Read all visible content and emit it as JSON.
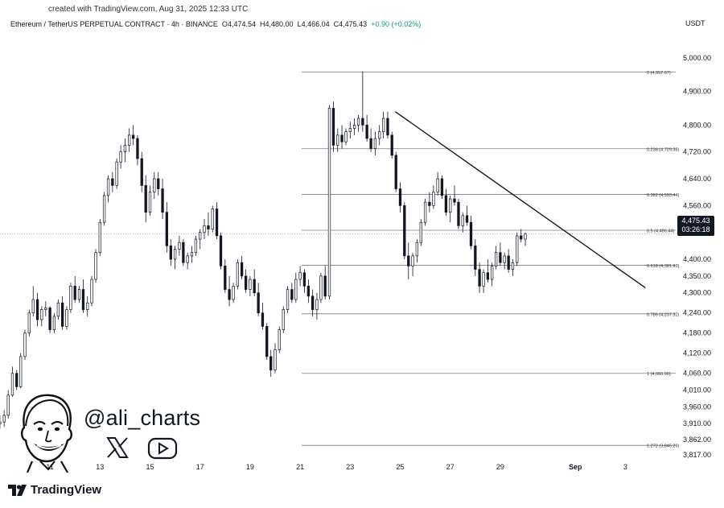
{
  "credit": "created with TradingView.com, Aug 31, 2025 12:33 UTC",
  "header": {
    "symbol": "Ethereum / TetherUS PERPETUAL CONTRACT · 4h · BINANCE",
    "open_label": "O",
    "open": "4,474.54",
    "high_label": "H",
    "high": "4,480.00",
    "low_label": "L",
    "low": "4,466.04",
    "close_label": "C",
    "close": "4,475.43",
    "change": "+0.90 (+0.02%)"
  },
  "currency": "USDT",
  "watermark": "@ali_charts",
  "brand": "TradingView",
  "price_tag": {
    "price": "4,475.43",
    "countdown": "03:26:18"
  },
  "icons": [
    "avatar-caricature",
    "x-logo-icon",
    "youtube-icon",
    "tradingview-logo-icon"
  ],
  "colors": {
    "up": "#131722",
    "down": "#131722",
    "text": "#131722",
    "grid_line": "#7a7a7a",
    "current_price_line": "#b0b0b0"
  },
  "chart_data": {
    "type": "candlestick",
    "y_range": [
      3790,
      5040
    ],
    "x_range_days": [
      "Aug 9",
      "Sep 4"
    ],
    "y_ticks": [
      {
        "value": 5000,
        "label": "5,000.00"
      },
      {
        "value": 4900,
        "label": "4,900.00"
      },
      {
        "value": 4800,
        "label": "4,800.00"
      },
      {
        "value": 4720,
        "label": "4,720.00"
      },
      {
        "value": 4640,
        "label": "4,640.00"
      },
      {
        "value": 4560,
        "label": "4,560.00"
      },
      {
        "value": 4400,
        "label": "4,400.00"
      },
      {
        "value": 4350,
        "label": "4,350.00"
      },
      {
        "value": 4300,
        "label": "4,300.00"
      },
      {
        "value": 4240,
        "label": "4,240.00"
      },
      {
        "value": 4180,
        "label": "4,180.00"
      },
      {
        "value": 4120,
        "label": "4,120.00"
      },
      {
        "value": 4060,
        "label": "4,060.00"
      },
      {
        "value": 4010,
        "label": "4,010.00"
      },
      {
        "value": 3960,
        "label": "3,960.00"
      },
      {
        "value": 3910,
        "label": "3,910.00"
      },
      {
        "value": 3862,
        "label": "3,862.00"
      },
      {
        "value": 3817,
        "label": "3,817.00"
      }
    ],
    "x_ticks": [
      {
        "day": 11,
        "label": "11"
      },
      {
        "day": 13,
        "label": "13"
      },
      {
        "day": 15,
        "label": "15"
      },
      {
        "day": 17,
        "label": "17"
      },
      {
        "day": 19,
        "label": "19"
      },
      {
        "day": 21,
        "label": "21"
      },
      {
        "day": 23,
        "label": "23"
      },
      {
        "day": 25,
        "label": "25"
      },
      {
        "day": 27,
        "label": "27"
      },
      {
        "day": 29,
        "label": "29"
      },
      {
        "day": 32,
        "label": "Sep"
      },
      {
        "day": 34,
        "label": "3"
      }
    ],
    "fib_levels": [
      {
        "ratio": "0",
        "price": 4957.67,
        "label": "0 (4,957.67)"
      },
      {
        "ratio": "0.236",
        "price": 4729.38,
        "label": "0.236 (4,729.38)"
      },
      {
        "ratio": "0.382",
        "price": 4593.44,
        "label": "0.382 (4,593.44)"
      },
      {
        "ratio": "0.5",
        "price": 4486.44,
        "label": "0.5 (4,486.44)"
      },
      {
        "ratio": "0.618",
        "price": 4381.93,
        "label": "0.618 (4,381.93)"
      },
      {
        "ratio": "0.786",
        "price": 4237.32,
        "label": "0.786 (4,237.32)"
      },
      {
        "ratio": "1",
        "price": 4060.0,
        "label": "1 (4,060.00)"
      },
      {
        "ratio": "1.272",
        "price": 3845.29,
        "label": "1.272 (3,845.29)"
      }
    ],
    "trendline": {
      "start": {
        "day": 24.8,
        "price": 4840
      },
      "end": {
        "day": 34.8,
        "price": 4315
      }
    },
    "current_price": 4475.43,
    "candles": [
      [
        9.0,
        3910,
        3935,
        3895,
        3915
      ],
      [
        9.17,
        3915,
        3950,
        3900,
        3935
      ],
      [
        9.33,
        3935,
        4010,
        3925,
        3995
      ],
      [
        9.5,
        3995,
        4080,
        3990,
        4060
      ],
      [
        9.67,
        4060,
        4070,
        4010,
        4020
      ],
      [
        9.83,
        4020,
        4120,
        4015,
        4110
      ],
      [
        10.0,
        4110,
        4190,
        4100,
        4180
      ],
      [
        10.17,
        4180,
        4250,
        4170,
        4240
      ],
      [
        10.33,
        4240,
        4320,
        4230,
        4280
      ],
      [
        10.5,
        4280,
        4300,
        4200,
        4220
      ],
      [
        10.67,
        4220,
        4260,
        4200,
        4250
      ],
      [
        10.83,
        4250,
        4275,
        4230,
        4255
      ],
      [
        11.0,
        4255,
        4260,
        4180,
        4190
      ],
      [
        11.17,
        4190,
        4240,
        4180,
        4230
      ],
      [
        11.33,
        4230,
        4280,
        4220,
        4270
      ],
      [
        11.5,
        4270,
        4290,
        4190,
        4200
      ],
      [
        11.67,
        4200,
        4260,
        4190,
        4250
      ],
      [
        11.83,
        4250,
        4330,
        4240,
        4320
      ],
      [
        12.0,
        4320,
        4350,
        4270,
        4280
      ],
      [
        12.17,
        4280,
        4320,
        4270,
        4310
      ],
      [
        12.33,
        4310,
        4340,
        4240,
        4250
      ],
      [
        12.5,
        4250,
        4290,
        4230,
        4270
      ],
      [
        12.67,
        4270,
        4350,
        4260,
        4340
      ],
      [
        12.83,
        4340,
        4430,
        4330,
        4420
      ],
      [
        13.0,
        4420,
        4520,
        4410,
        4510
      ],
      [
        13.17,
        4510,
        4600,
        4500,
        4590
      ],
      [
        13.33,
        4590,
        4650,
        4570,
        4640
      ],
      [
        13.5,
        4640,
        4660,
        4600,
        4620
      ],
      [
        13.67,
        4620,
        4700,
        4610,
        4690
      ],
      [
        13.83,
        4690,
        4740,
        4670,
        4720
      ],
      [
        14.0,
        4720,
        4760,
        4690,
        4740
      ],
      [
        14.17,
        4740,
        4790,
        4720,
        4770
      ],
      [
        14.33,
        4770,
        4800,
        4740,
        4760
      ],
      [
        14.5,
        4760,
        4770,
        4680,
        4700
      ],
      [
        14.67,
        4700,
        4720,
        4600,
        4620
      ],
      [
        14.83,
        4620,
        4650,
        4510,
        4540
      ],
      [
        15.0,
        4540,
        4620,
        4530,
        4600
      ],
      [
        15.17,
        4600,
        4660,
        4580,
        4640
      ],
      [
        15.33,
        4640,
        4660,
        4590,
        4610
      ],
      [
        15.5,
        4610,
        4640,
        4520,
        4540
      ],
      [
        15.67,
        4540,
        4570,
        4420,
        4440
      ],
      [
        15.83,
        4440,
        4460,
        4380,
        4400
      ],
      [
        16.0,
        4400,
        4440,
        4370,
        4430
      ],
      [
        16.17,
        4430,
        4470,
        4410,
        4450
      ],
      [
        16.33,
        4450,
        4460,
        4380,
        4390
      ],
      [
        16.5,
        4390,
        4420,
        4370,
        4410
      ],
      [
        16.67,
        4410,
        4440,
        4390,
        4420
      ],
      [
        16.83,
        4420,
        4470,
        4410,
        4460
      ],
      [
        17.0,
        4460,
        4490,
        4430,
        4480
      ],
      [
        17.17,
        4480,
        4520,
        4460,
        4500
      ],
      [
        17.33,
        4500,
        4540,
        4470,
        4490
      ],
      [
        17.5,
        4490,
        4560,
        4480,
        4550
      ],
      [
        17.67,
        4550,
        4570,
        4460,
        4470
      ],
      [
        17.83,
        4470,
        4480,
        4370,
        4380
      ],
      [
        18.0,
        4380,
        4400,
        4300,
        4310
      ],
      [
        18.17,
        4310,
        4350,
        4260,
        4280
      ],
      [
        18.33,
        4280,
        4330,
        4270,
        4320
      ],
      [
        18.5,
        4320,
        4400,
        4310,
        4390
      ],
      [
        18.67,
        4390,
        4410,
        4340,
        4350
      ],
      [
        18.83,
        4350,
        4370,
        4300,
        4310
      ],
      [
        19.0,
        4310,
        4350,
        4290,
        4340
      ],
      [
        19.17,
        4340,
        4370,
        4290,
        4300
      ],
      [
        19.33,
        4300,
        4330,
        4230,
        4240
      ],
      [
        19.5,
        4240,
        4270,
        4190,
        4200
      ],
      [
        19.67,
        4200,
        4210,
        4100,
        4110
      ],
      [
        19.83,
        4110,
        4130,
        4050,
        4070
      ],
      [
        20.0,
        4070,
        4150,
        4060,
        4130
      ],
      [
        20.17,
        4130,
        4200,
        4120,
        4190
      ],
      [
        20.33,
        4190,
        4260,
        4180,
        4250
      ],
      [
        20.5,
        4250,
        4320,
        4240,
        4310
      ],
      [
        20.67,
        4310,
        4330,
        4270,
        4280
      ],
      [
        20.83,
        4280,
        4360,
        4270,
        4340
      ],
      [
        21.0,
        4340,
        4380,
        4320,
        4360
      ],
      [
        21.17,
        4360,
        4370,
        4300,
        4320
      ],
      [
        21.33,
        4320,
        4340,
        4270,
        4290
      ],
      [
        21.5,
        4290,
        4310,
        4230,
        4250
      ],
      [
        21.67,
        4250,
        4300,
        4220,
        4280
      ],
      [
        21.83,
        4280,
        4360,
        4270,
        4350
      ],
      [
        22.0,
        4350,
        4380,
        4280,
        4290
      ],
      [
        22.17,
        4290,
        4860,
        4280,
        4850
      ],
      [
        22.33,
        4850,
        4870,
        4720,
        4740
      ],
      [
        22.5,
        4740,
        4790,
        4720,
        4770
      ],
      [
        22.67,
        4770,
        4800,
        4730,
        4750
      ],
      [
        22.83,
        4750,
        4790,
        4740,
        4780
      ],
      [
        23.0,
        4780,
        4810,
        4760,
        4790
      ],
      [
        23.17,
        4790,
        4820,
        4770,
        4800
      ],
      [
        23.33,
        4800,
        4830,
        4780,
        4820
      ],
      [
        23.5,
        4820,
        4960,
        4780,
        4800
      ],
      [
        23.67,
        4800,
        4830,
        4750,
        4760
      ],
      [
        23.83,
        4760,
        4790,
        4720,
        4730
      ],
      [
        24.0,
        4730,
        4780,
        4710,
        4760
      ],
      [
        24.17,
        4760,
        4800,
        4740,
        4780
      ],
      [
        24.33,
        4780,
        4840,
        4760,
        4820
      ],
      [
        24.5,
        4820,
        4840,
        4760,
        4770
      ],
      [
        24.67,
        4770,
        4780,
        4700,
        4710
      ],
      [
        24.83,
        4710,
        4720,
        4600,
        4610
      ],
      [
        25.0,
        4610,
        4630,
        4540,
        4560
      ],
      [
        25.17,
        4560,
        4570,
        4400,
        4410
      ],
      [
        25.33,
        4410,
        4450,
        4340,
        4380
      ],
      [
        25.5,
        4380,
        4420,
        4350,
        4410
      ],
      [
        25.67,
        4410,
        4460,
        4390,
        4450
      ],
      [
        25.83,
        4450,
        4520,
        4440,
        4510
      ],
      [
        26.0,
        4510,
        4580,
        4500,
        4570
      ],
      [
        26.17,
        4570,
        4600,
        4540,
        4560
      ],
      [
        26.33,
        4560,
        4620,
        4550,
        4600
      ],
      [
        26.5,
        4600,
        4660,
        4590,
        4640
      ],
      [
        26.67,
        4640,
        4650,
        4580,
        4590
      ],
      [
        26.83,
        4590,
        4610,
        4530,
        4540
      ],
      [
        27.0,
        4540,
        4590,
        4510,
        4580
      ],
      [
        27.17,
        4580,
        4620,
        4560,
        4570
      ],
      [
        27.33,
        4570,
        4580,
        4490,
        4500
      ],
      [
        27.5,
        4500,
        4540,
        4480,
        4530
      ],
      [
        27.67,
        4530,
        4560,
        4500,
        4510
      ],
      [
        27.83,
        4510,
        4530,
        4430,
        4440
      ],
      [
        28.0,
        4440,
        4460,
        4350,
        4370
      ],
      [
        28.17,
        4370,
        4390,
        4300,
        4320
      ],
      [
        28.33,
        4320,
        4370,
        4300,
        4360
      ],
      [
        28.5,
        4360,
        4400,
        4330,
        4340
      ],
      [
        28.67,
        4340,
        4390,
        4320,
        4380
      ],
      [
        28.83,
        4380,
        4440,
        4370,
        4420
      ],
      [
        29.0,
        4420,
        4450,
        4380,
        4390
      ],
      [
        29.17,
        4390,
        4420,
        4370,
        4410
      ],
      [
        29.33,
        4410,
        4430,
        4360,
        4370
      ],
      [
        29.5,
        4370,
        4400,
        4350,
        4390
      ],
      [
        29.67,
        4390,
        4480,
        4380,
        4470
      ],
      [
        29.83,
        4470,
        4490,
        4450,
        4460
      ],
      [
        30.0,
        4460,
        4480,
        4440,
        4475
      ]
    ]
  }
}
